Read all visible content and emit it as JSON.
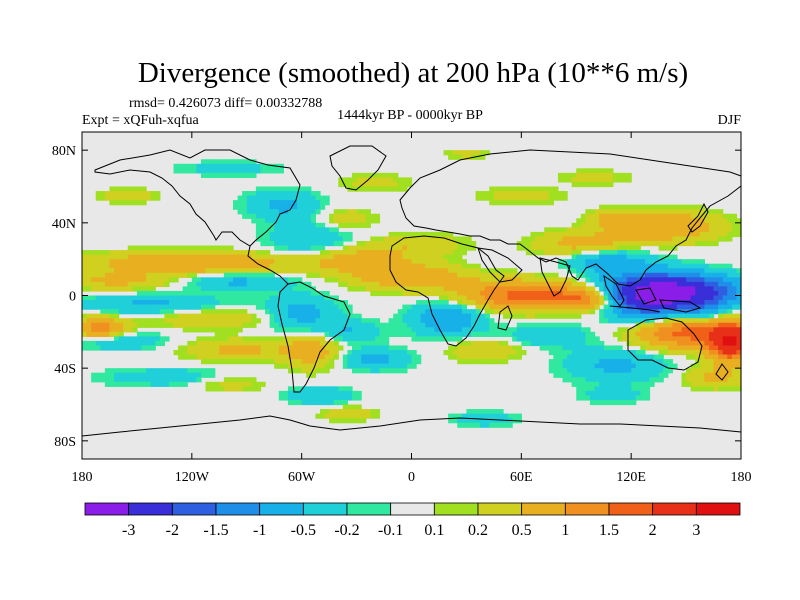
{
  "chart_data": {
    "type": "heatmap",
    "title": "Divergence (smoothed) at 200 hPa (10**6 m/s)",
    "stats_text": "rmsd= 0.426073 diff= 0.00332788",
    "left_label": "Expt = xQFuh-xqfua",
    "center_label": "1444kyr BP - 0000kyr BP",
    "right_label": "DJF",
    "x_ticks": [
      "180",
      "120W",
      "60W",
      "0",
      "60E",
      "120E",
      "180"
    ],
    "x_tick_values": [
      -180,
      -120,
      -60,
      0,
      60,
      120,
      180
    ],
    "y_ticks": [
      "80N",
      "40N",
      "0",
      "40S",
      "80S"
    ],
    "y_tick_values": [
      80,
      40,
      0,
      -40,
      -80
    ],
    "xlim": [
      -180,
      180
    ],
    "ylim": [
      -90,
      90
    ],
    "colorbar_labels": [
      "-3",
      "-2",
      "-1.5",
      "-1",
      "-0.5",
      "-0.2",
      "-0.1",
      "0.1",
      "0.2",
      "0.5",
      "1",
      "1.5",
      "2",
      "3"
    ],
    "colorbar_levels": [
      -3,
      -2,
      -1.5,
      -1,
      -0.5,
      -0.2,
      -0.1,
      0.1,
      0.2,
      0.5,
      1,
      1.5,
      2,
      3
    ],
    "colorbar_colors": [
      "#8a1ee8",
      "#3a2ed8",
      "#2e5fe0",
      "#1e8ee8",
      "#18b0e8",
      "#20d0d8",
      "#30e8a0",
      "#e8e8e8",
      "#a0e020",
      "#d0d020",
      "#e8b020",
      "#f09020",
      "#f06018",
      "#e83018",
      "#e01010"
    ],
    "field_blobs": [
      {
        "lon": 145,
        "lat": 2,
        "rlon": 32,
        "rlat": 9,
        "v": -3.0
      },
      {
        "lon": 128,
        "lat": -2,
        "rlon": 22,
        "rlat": 14,
        "v": -1.6
      },
      {
        "lon": 105,
        "lat": 20,
        "rlon": 22,
        "rlat": 7,
        "v": -0.8
      },
      {
        "lon": 112,
        "lat": -38,
        "rlon": 28,
        "rlat": 10,
        "v": -0.6
      },
      {
        "lon": 160,
        "lat": -10,
        "rlon": 12,
        "rlat": 8,
        "v": -0.6
      },
      {
        "lon": 60,
        "lat": 0,
        "rlon": 35,
        "rlat": 8,
        "v": 1.6
      },
      {
        "lon": 95,
        "lat": -2,
        "rlon": 18,
        "rlat": 6,
        "v": 1.2
      },
      {
        "lon": 150,
        "lat": -20,
        "rlon": 30,
        "rlat": 9,
        "v": 1.8
      },
      {
        "lon": 175,
        "lat": -26,
        "rlon": 12,
        "rlat": 10,
        "v": 2.6
      },
      {
        "lon": 95,
        "lat": 28,
        "rlon": 26,
        "rlat": 7,
        "v": 0.8
      },
      {
        "lon": 140,
        "lat": 38,
        "rlon": 28,
        "rlat": 8,
        "v": 1.0
      },
      {
        "lon": 110,
        "lat": 42,
        "rlon": 12,
        "rlat": 5,
        "v": 0.6
      },
      {
        "lon": 20,
        "lat": -12,
        "rlon": 20,
        "rlat": 10,
        "v": -0.9
      },
      {
        "lon": 40,
        "lat": -30,
        "rlon": 20,
        "rlat": 6,
        "v": 0.5
      },
      {
        "lon": 75,
        "lat": -22,
        "rlon": 22,
        "rlat": 6,
        "v": -0.5
      },
      {
        "lon": 0,
        "lat": 10,
        "rlon": 30,
        "rlat": 7,
        "v": 0.9
      },
      {
        "lon": 5,
        "lat": 28,
        "rlon": 25,
        "rlat": 6,
        "v": 0.4
      },
      {
        "lon": -30,
        "lat": 20,
        "rlon": 30,
        "rlat": 8,
        "v": 0.7
      },
      {
        "lon": -55,
        "lat": 30,
        "rlon": 25,
        "rlat": 10,
        "v": -0.5
      },
      {
        "lon": -70,
        "lat": 50,
        "rlon": 20,
        "rlat": 8,
        "v": -0.6
      },
      {
        "lon": -35,
        "lat": 42,
        "rlon": 15,
        "rlat": 6,
        "v": 0.4
      },
      {
        "lon": -20,
        "lat": 62,
        "rlon": 20,
        "rlat": 5,
        "v": 0.3
      },
      {
        "lon": 60,
        "lat": 55,
        "rlon": 25,
        "rlat": 5,
        "v": 0.3
      },
      {
        "lon": -120,
        "lat": 18,
        "rlon": 55,
        "rlat": 6,
        "v": 1.0
      },
      {
        "lon": -160,
        "lat": 8,
        "rlon": 30,
        "rlat": 5,
        "v": 0.6
      },
      {
        "lon": -95,
        "lat": 8,
        "rlon": 30,
        "rlat": 5,
        "v": -0.6
      },
      {
        "lon": -140,
        "lat": -5,
        "rlon": 40,
        "rlat": 6,
        "v": -0.6
      },
      {
        "lon": -110,
        "lat": -12,
        "rlon": 35,
        "rlat": 6,
        "v": 0.5
      },
      {
        "lon": -160,
        "lat": -25,
        "rlon": 25,
        "rlat": 5,
        "v": -0.5
      },
      {
        "lon": -170,
        "lat": -18,
        "rlon": 14,
        "rlat": 6,
        "v": 1.2
      },
      {
        "lon": -95,
        "lat": -30,
        "rlon": 28,
        "rlat": 6,
        "v": 0.6
      },
      {
        "lon": -60,
        "lat": -10,
        "rlon": 20,
        "rlat": 10,
        "v": -0.7
      },
      {
        "lon": -55,
        "lat": -30,
        "rlon": 15,
        "rlat": 10,
        "v": 0.8
      },
      {
        "lon": -35,
        "lat": -20,
        "rlon": 18,
        "rlat": 6,
        "v": -0.5
      },
      {
        "lon": -20,
        "lat": -35,
        "rlon": 20,
        "rlat": 6,
        "v": -0.6
      },
      {
        "lon": -130,
        "lat": -45,
        "rlon": 40,
        "rlat": 5,
        "v": -0.4
      },
      {
        "lon": -100,
        "lat": -48,
        "rlon": 20,
        "rlat": 5,
        "v": 0.4
      },
      {
        "lon": -50,
        "lat": -55,
        "rlon": 18,
        "rlat": 5,
        "v": -0.5
      },
      {
        "lon": 165,
        "lat": -45,
        "rlon": 16,
        "rlat": 6,
        "v": 0.6
      },
      {
        "lon": 110,
        "lat": -55,
        "rlon": 16,
        "rlat": 4,
        "v": -0.4
      },
      {
        "lon": -155,
        "lat": 55,
        "rlon": 15,
        "rlat": 4,
        "v": 0.4
      },
      {
        "lon": -100,
        "lat": 70,
        "rlon": 30,
        "rlat": 4,
        "v": -0.3
      },
      {
        "lon": 100,
        "lat": 65,
        "rlon": 20,
        "rlat": 4,
        "v": 0.3
      },
      {
        "lon": 30,
        "lat": 78,
        "rlon": 12,
        "rlat": 3,
        "v": 0.3
      },
      {
        "lon": -35,
        "lat": -65,
        "rlon": 15,
        "rlat": 4,
        "v": 0.4
      },
      {
        "lon": 40,
        "lat": -68,
        "rlon": 18,
        "rlat": 4,
        "v": -0.4
      }
    ]
  }
}
